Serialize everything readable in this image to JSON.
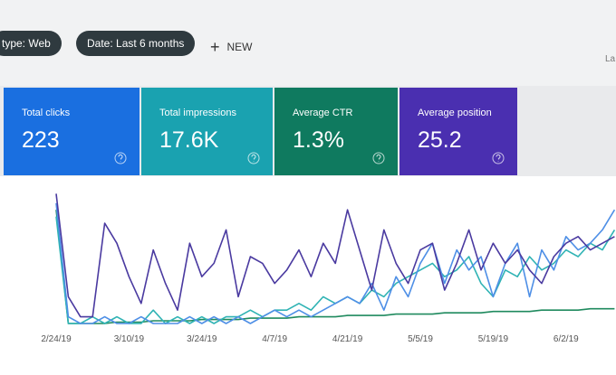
{
  "filters": [
    "type: Web",
    "Date: Last 6 months"
  ],
  "new_button": "NEW",
  "corner_text": "La",
  "cards": [
    {
      "label": "Total clicks",
      "value": "223",
      "color": "#1a6fe0"
    },
    {
      "label": "Total impressions",
      "value": "17.6K",
      "color": "#1aa2b0"
    },
    {
      "label": "Average CTR",
      "value": "1.3%",
      "color": "#0f7a5f"
    },
    {
      "label": "Average position",
      "value": "25.2",
      "color": "#4a2fb0"
    }
  ],
  "chart_data": {
    "type": "line",
    "categories": [
      "2/24/19",
      null,
      null,
      null,
      null,
      null,
      "3/10/19",
      null,
      null,
      null,
      null,
      null,
      "3/24/19",
      null,
      null,
      null,
      null,
      null,
      "4/7/19",
      null,
      null,
      null,
      null,
      null,
      "4/21/19",
      null,
      null,
      null,
      null,
      null,
      "5/5/19",
      null,
      null,
      null,
      null,
      null,
      "5/19/19",
      null,
      null,
      null,
      null,
      null,
      "6/2/19",
      null,
      null,
      null,
      null
    ],
    "ylim": [
      0,
      100
    ],
    "series": [
      {
        "color": "#1f8a5e",
        "values": [
          85,
          0,
          0,
          0,
          0,
          1,
          1,
          1,
          2,
          2,
          2,
          2,
          3,
          3,
          3,
          3,
          4,
          4,
          4,
          4,
          5,
          5,
          5,
          5,
          6,
          6,
          6,
          6,
          7,
          7,
          7,
          7,
          8,
          8,
          8,
          8,
          9,
          9,
          9,
          9,
          10,
          10,
          10,
          10,
          11,
          11,
          11
        ]
      },
      {
        "color": "#2fb3b4",
        "values": [
          80,
          0,
          0,
          5,
          0,
          5,
          0,
          0,
          10,
          0,
          5,
          0,
          5,
          0,
          5,
          5,
          10,
          5,
          10,
          10,
          15,
          10,
          20,
          15,
          20,
          15,
          25,
          20,
          30,
          35,
          40,
          45,
          35,
          40,
          50,
          30,
          20,
          40,
          35,
          50,
          40,
          45,
          55,
          50,
          60,
          55,
          70
        ]
      },
      {
        "color": "#4e8fe6",
        "values": [
          90,
          5,
          0,
          0,
          5,
          0,
          0,
          5,
          0,
          0,
          0,
          5,
          0,
          5,
          0,
          5,
          0,
          5,
          10,
          5,
          10,
          5,
          10,
          15,
          20,
          15,
          30,
          10,
          35,
          20,
          45,
          60,
          30,
          55,
          40,
          50,
          20,
          45,
          60,
          20,
          55,
          40,
          65,
          55,
          60,
          70,
          85
        ]
      },
      {
        "color": "#4a3aa0",
        "values": [
          97,
          20,
          5,
          5,
          75,
          60,
          35,
          15,
          55,
          30,
          10,
          60,
          35,
          45,
          70,
          20,
          50,
          45,
          30,
          40,
          55,
          35,
          60,
          45,
          85,
          55,
          25,
          70,
          45,
          30,
          55,
          60,
          25,
          45,
          70,
          40,
          60,
          45,
          55,
          40,
          30,
          50,
          60,
          65,
          55,
          60,
          65
        ]
      }
    ]
  }
}
